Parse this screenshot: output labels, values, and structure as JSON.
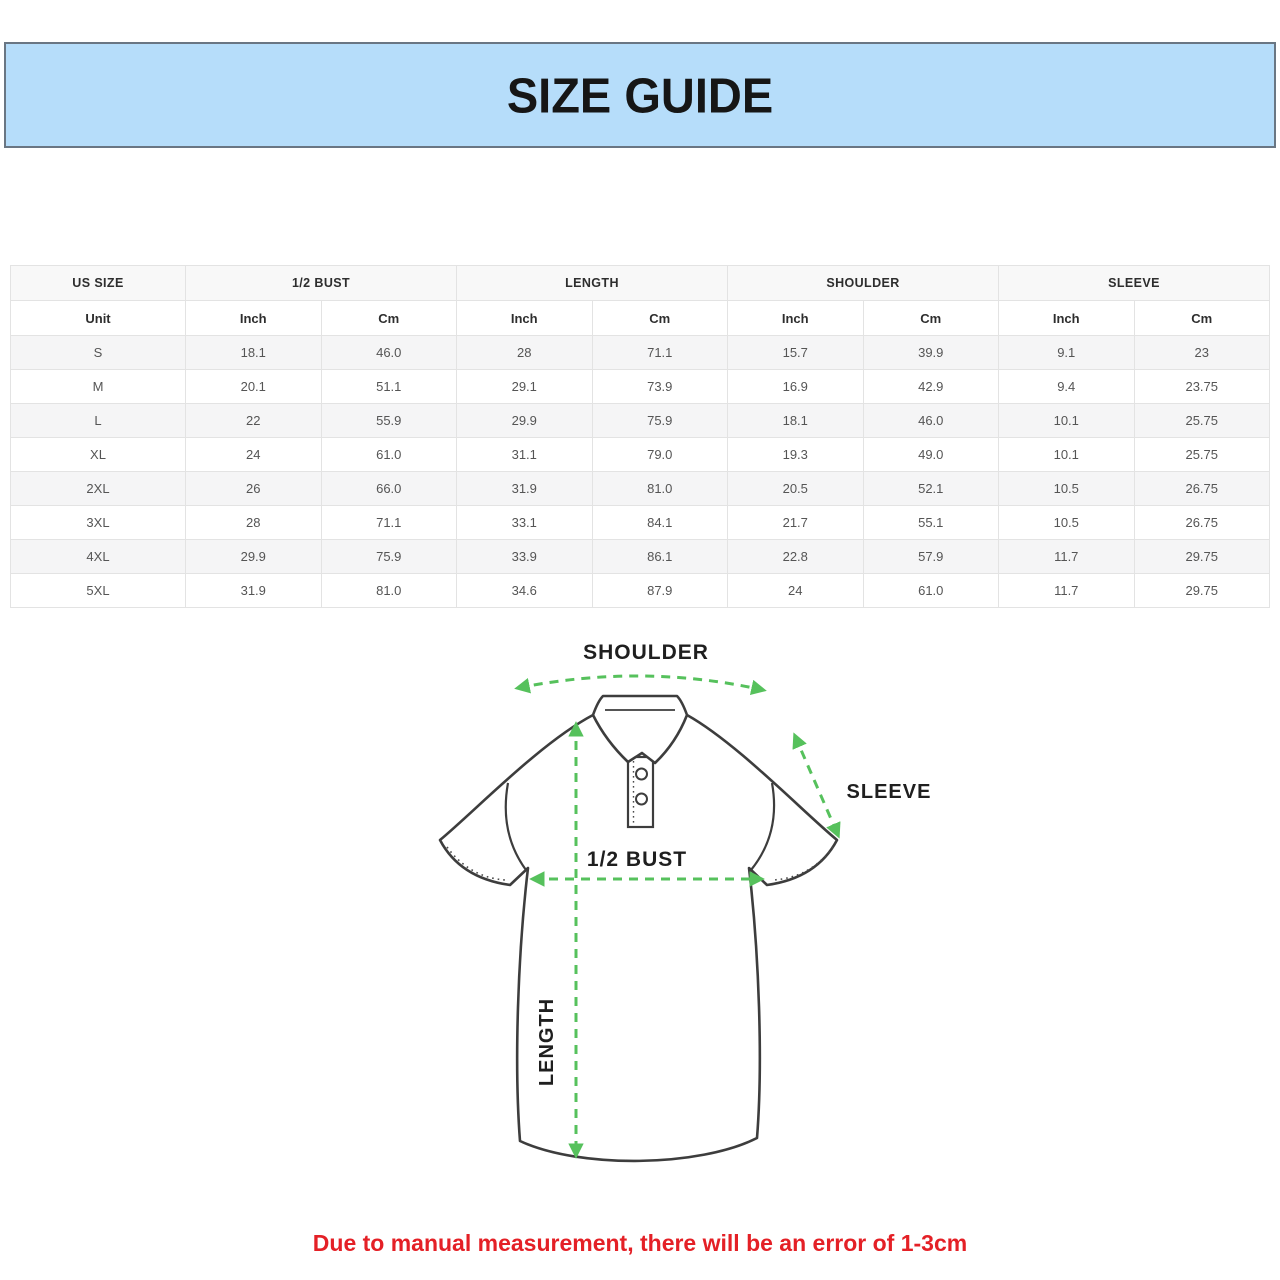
{
  "banner": {
    "title": "SIZE GUIDE"
  },
  "size_table": {
    "group_headers": [
      "US SIZE",
      "1/2 BUST",
      "LENGTH",
      "SHOULDER",
      "SLEEVE"
    ],
    "unit_headers": [
      "Unit",
      "Inch",
      "Cm",
      "Inch",
      "Cm",
      "Inch",
      "Cm",
      "Inch",
      "Cm"
    ],
    "rows": [
      [
        "S",
        "18.1",
        "46.0",
        "28",
        "71.1",
        "15.7",
        "39.9",
        "9.1",
        "23"
      ],
      [
        "M",
        "20.1",
        "51.1",
        "29.1",
        "73.9",
        "16.9",
        "42.9",
        "9.4",
        "23.75"
      ],
      [
        "L",
        "22",
        "55.9",
        "29.9",
        "75.9",
        "18.1",
        "46.0",
        "10.1",
        "25.75"
      ],
      [
        "XL",
        "24",
        "61.0",
        "31.1",
        "79.0",
        "19.3",
        "49.0",
        "10.1",
        "25.75"
      ],
      [
        "2XL",
        "26",
        "66.0",
        "31.9",
        "81.0",
        "20.5",
        "52.1",
        "10.5",
        "26.75"
      ],
      [
        "3XL",
        "28",
        "71.1",
        "33.1",
        "84.1",
        "21.7",
        "55.1",
        "10.5",
        "26.75"
      ],
      [
        "4XL",
        "29.9",
        "75.9",
        "33.9",
        "86.1",
        "22.8",
        "57.9",
        "11.7",
        "29.75"
      ],
      [
        "5XL",
        "31.9",
        "81.0",
        "34.6",
        "87.9",
        "24",
        "61.0",
        "11.7",
        "29.75"
      ]
    ]
  },
  "diagram": {
    "shoulder_label": "SHOULDER",
    "sleeve_label": "SLEEVE",
    "bust_label": "1/2 BUST",
    "length_label": "LENGTH",
    "arrow_color": "#56c15c",
    "outline_color": "#3d3d3d"
  },
  "note": {
    "text": "Due to manual measurement, there will be an error of 1-3cm",
    "color": "#e42026"
  },
  "colors": {
    "banner_bg": "#b6ddfa",
    "banner_border": "#6a7683",
    "row_stripe": "#f5f5f6",
    "table_border": "#e3e3e3"
  }
}
